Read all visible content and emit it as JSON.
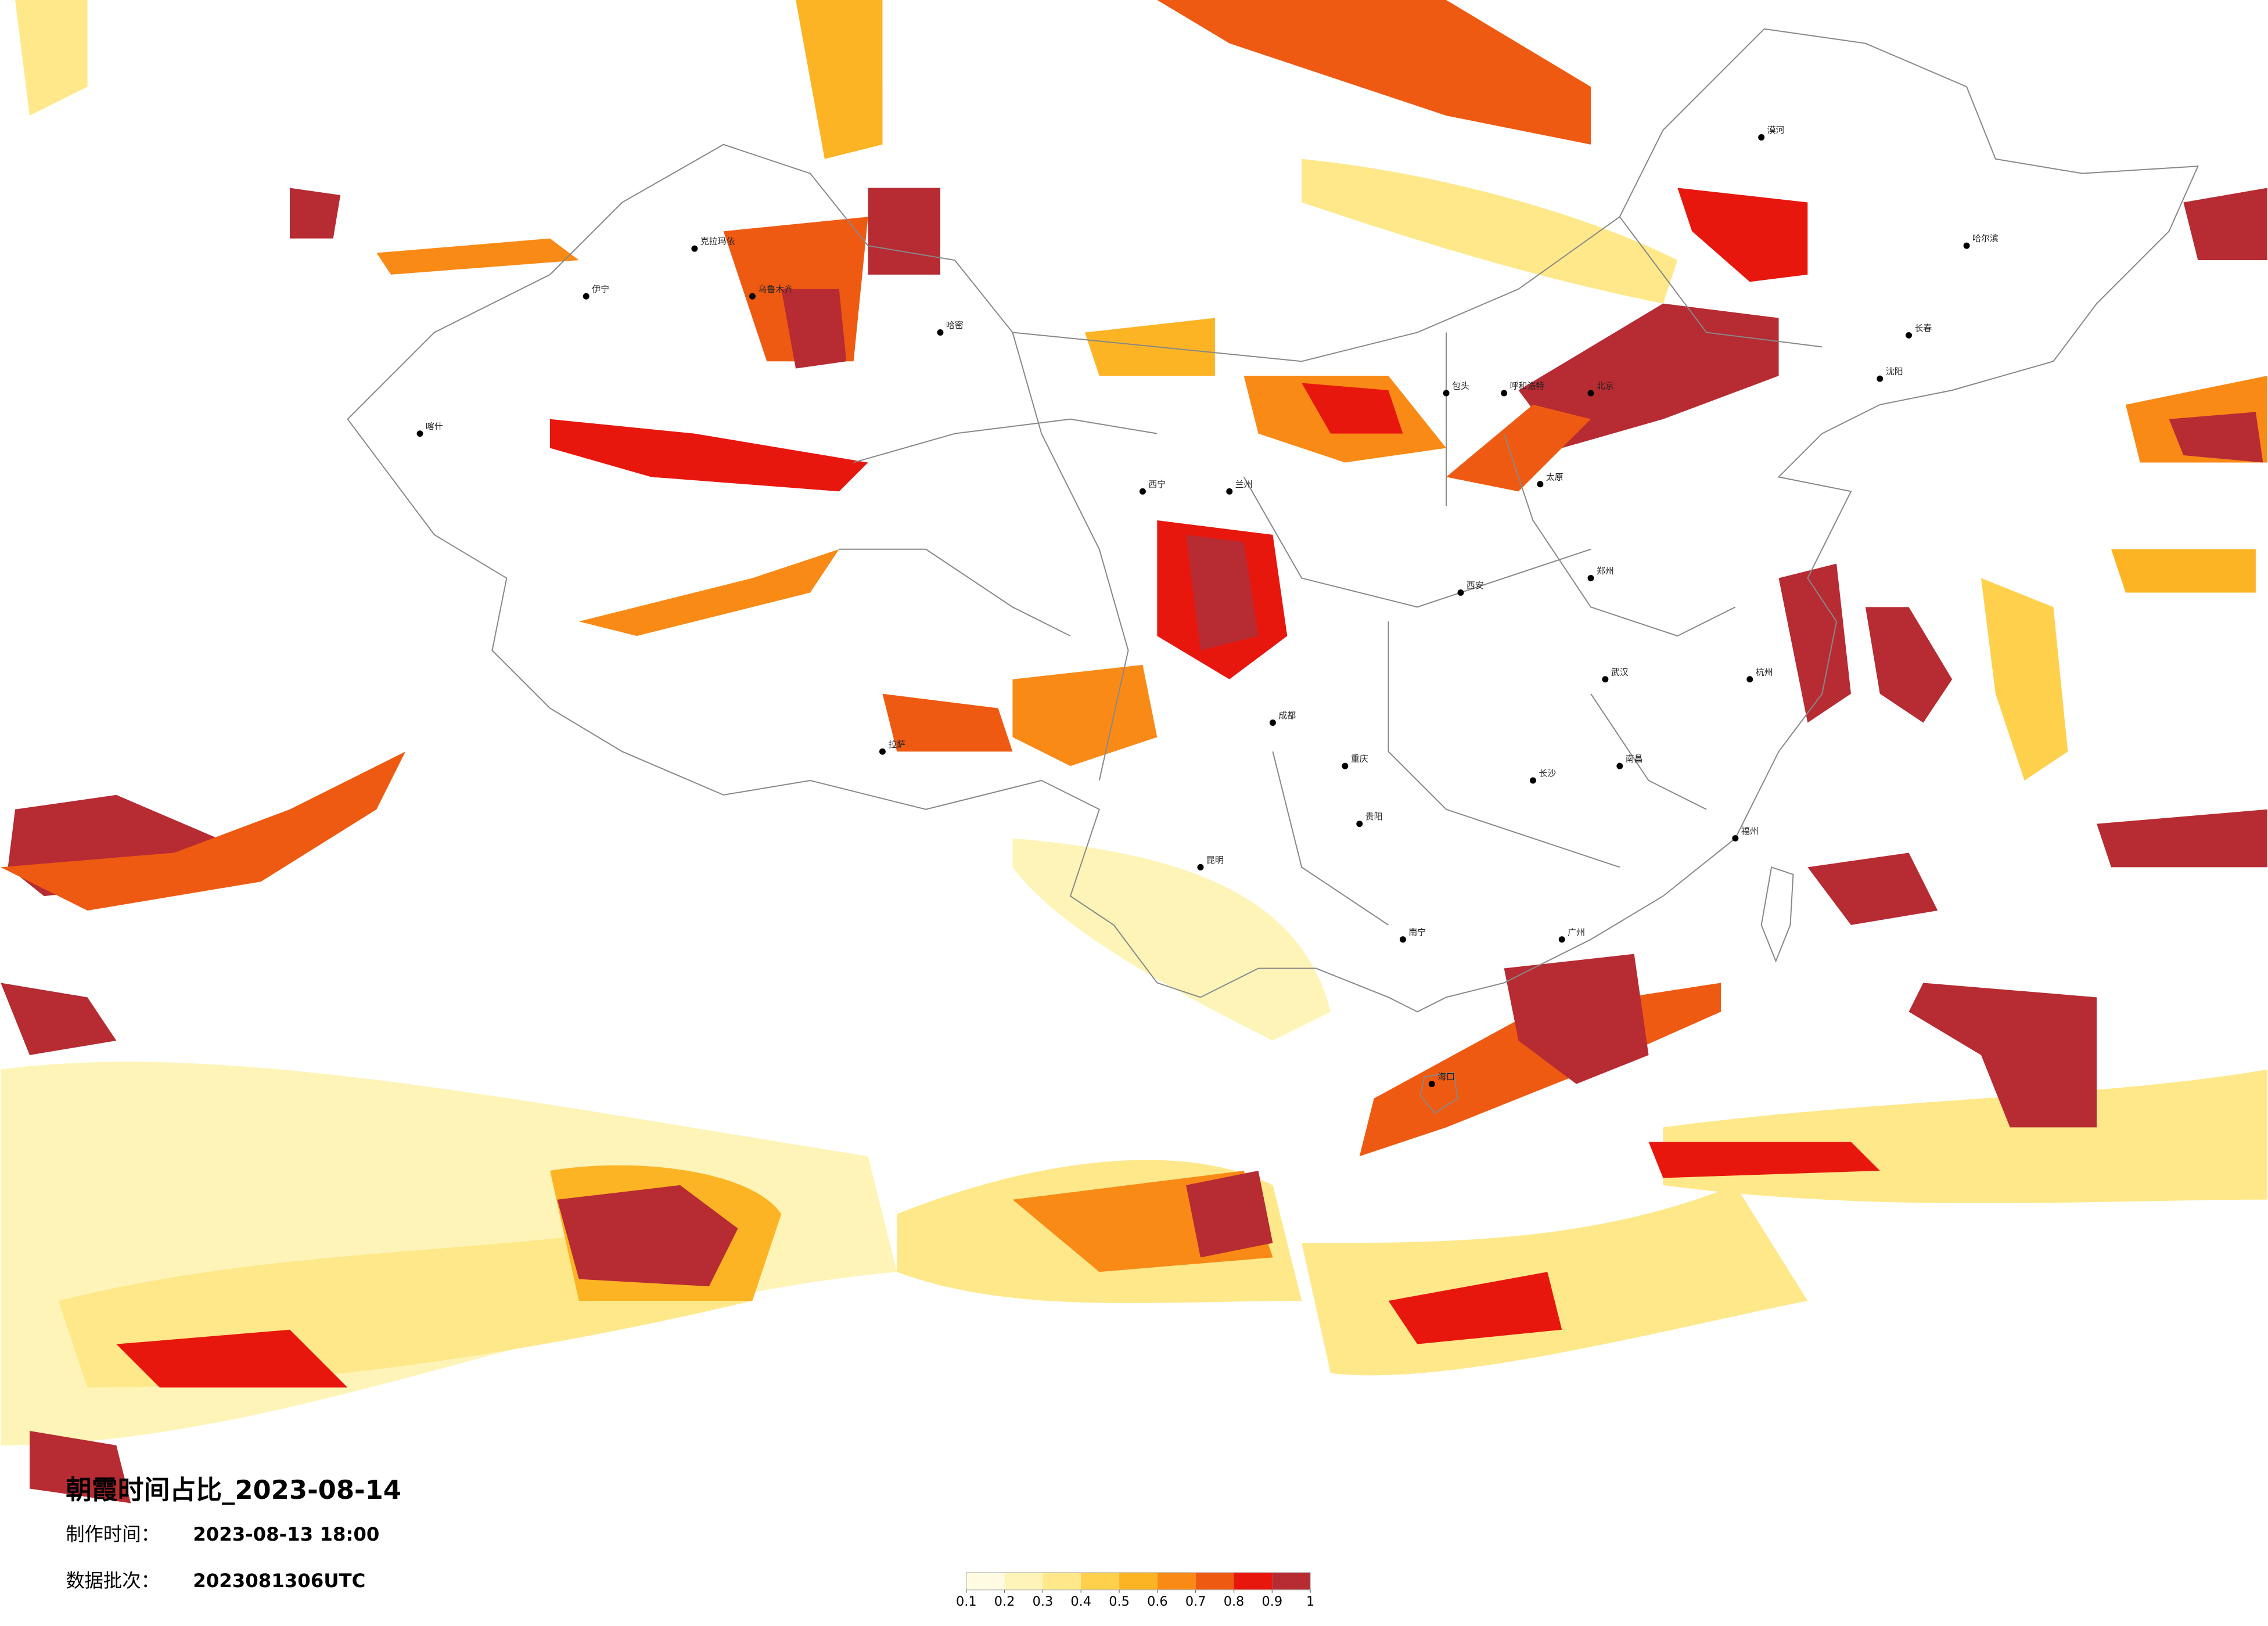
{
  "title": "朝霞时间占比_2023-08-14",
  "production_time": {
    "label": "制作时间：",
    "value": "2023-08-13 18:00"
  },
  "data_batch": {
    "label": "数据批次：",
    "value": "2023081306UTC"
  },
  "legend": {
    "ticks": [
      0.1,
      0.2,
      0.3,
      0.4,
      0.5,
      0.6,
      0.7,
      0.8,
      0.9,
      1
    ],
    "colors": [
      "#fffbe3",
      "#fff4b8",
      "#fee88a",
      "#fed04c",
      "#fdb424",
      "#f98a16",
      "#ef5a12",
      "#e8170e",
      "#b72b33"
    ]
  },
  "cities": [
    "漠河",
    "哈尔滨",
    "长春",
    "沈阳",
    "北京",
    "呼和浩特",
    "包头",
    "太原",
    "郑州",
    "西安",
    "武汉",
    "重庆",
    "成都",
    "昆明",
    "贵阳",
    "南宁",
    "广州",
    "长沙",
    "南昌",
    "杭州",
    "福州",
    "兰州",
    "西宁",
    "拉萨",
    "乌鲁木齐",
    "喀什",
    "哈密",
    "克拉玛依",
    "伊宁",
    "海口"
  ]
}
